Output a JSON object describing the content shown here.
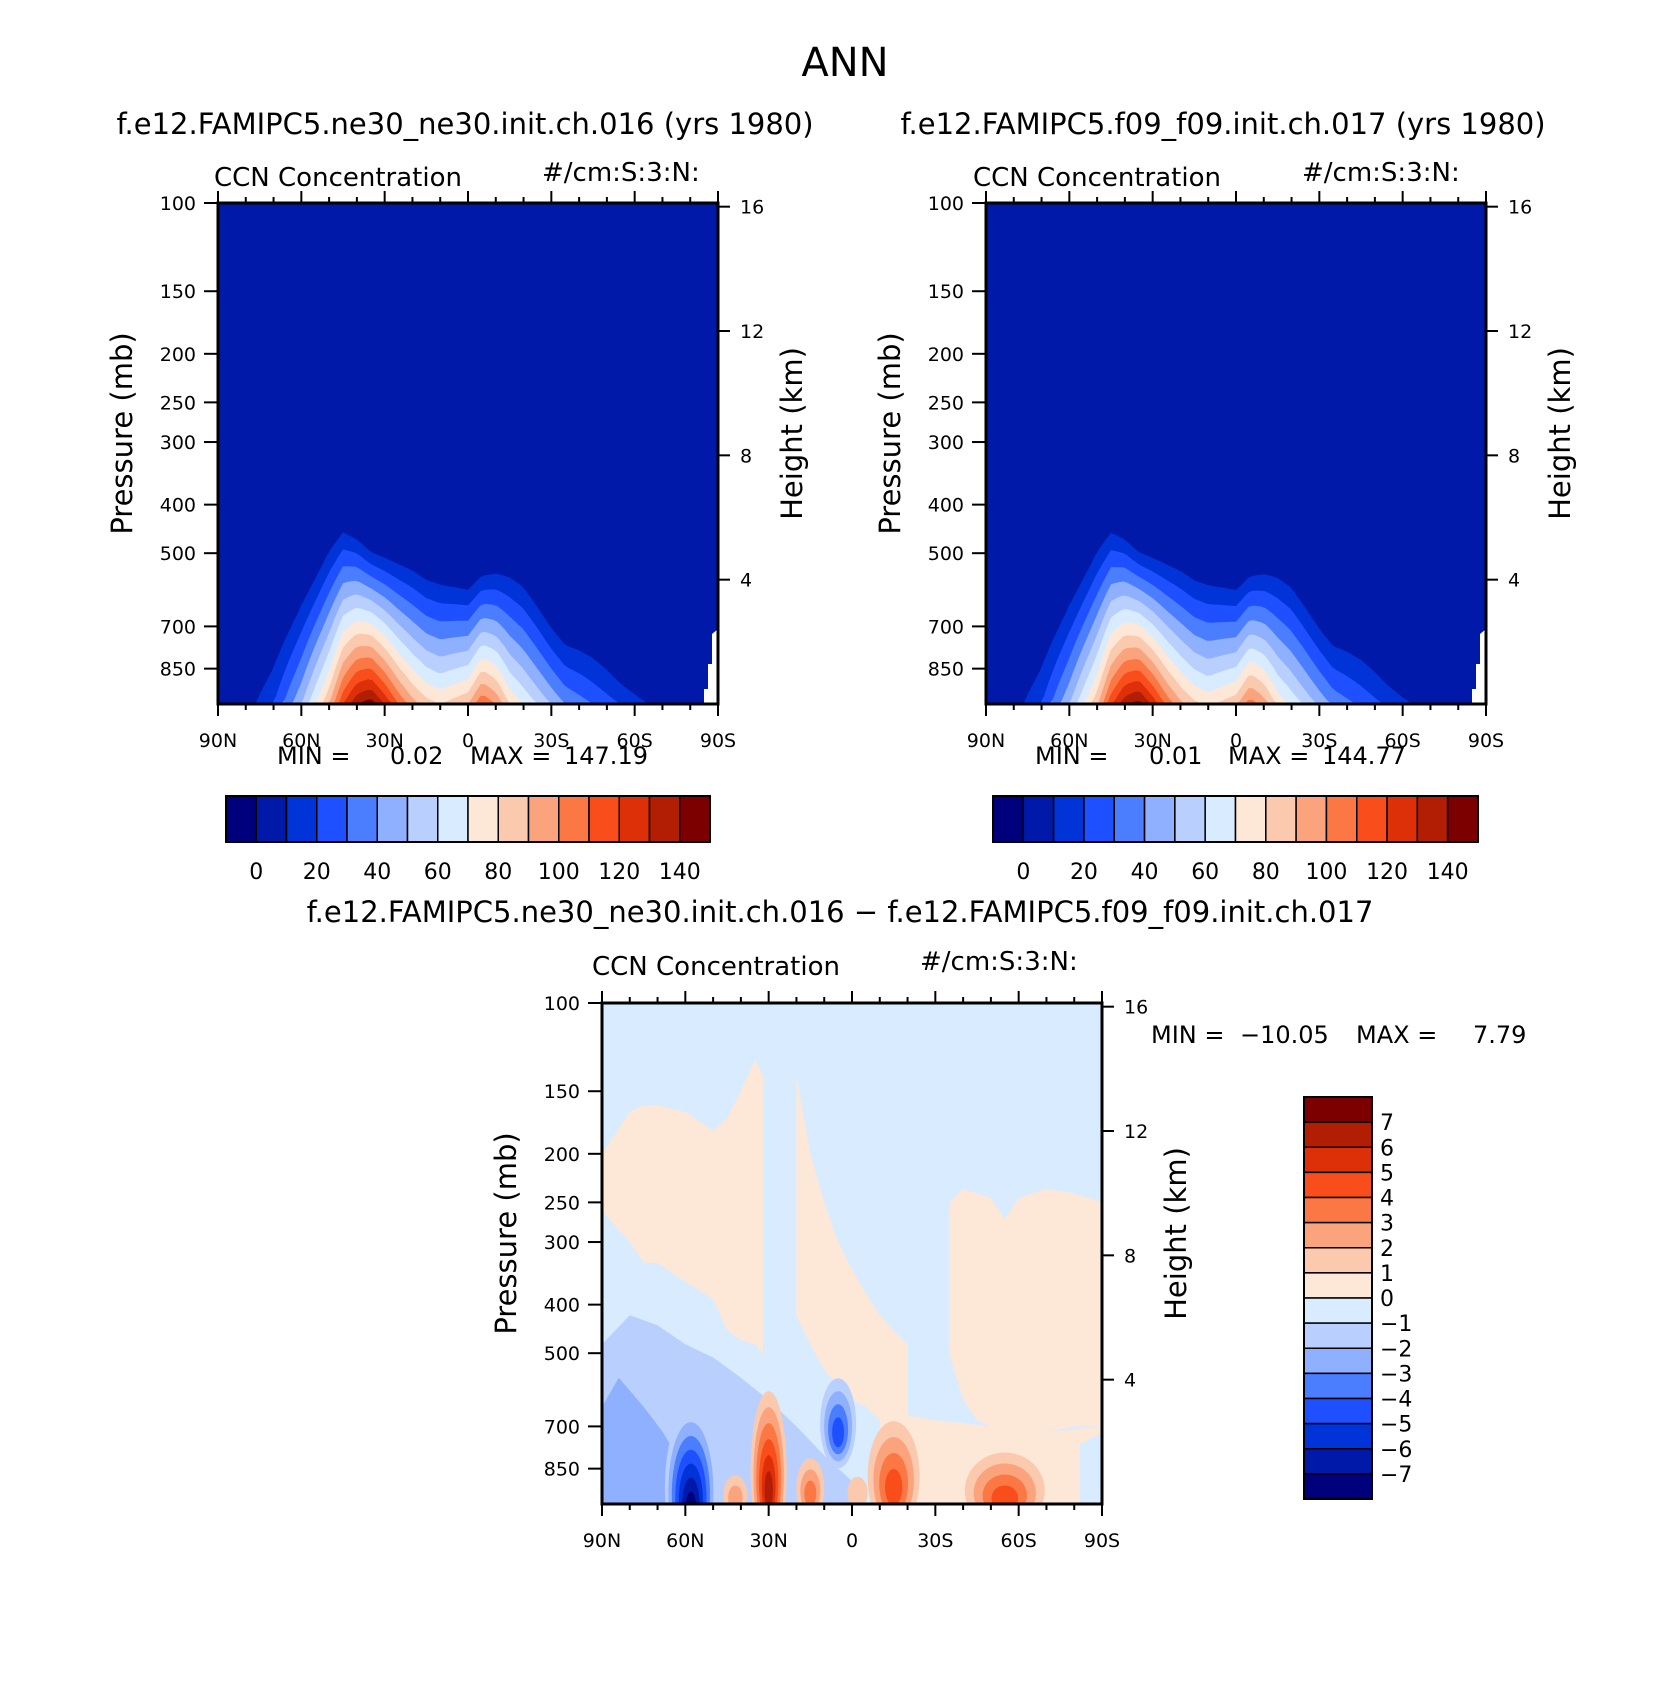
{
  "figure": {
    "title": "ANN"
  },
  "panels": [
    {
      "id": "model1",
      "case_title": "f.e12.FAMIPC5.ne30_ne30.init.ch.016 (yrs 1980)",
      "variable": "CCN Concentration",
      "units": "#/cm:S:3:N:",
      "min_label": "MIN =",
      "min_value": "0.02",
      "max_label": "MAX =",
      "max_value": "147.19",
      "colorbar_ticks": [
        "0",
        "20",
        "40",
        "60",
        "80",
        "100",
        "120",
        "140"
      ]
    },
    {
      "id": "model2",
      "case_title": "f.e12.FAMIPC5.f09_f09.init.ch.017 (yrs 1980)",
      "variable": "CCN Concentration",
      "units": "#/cm:S:3:N:",
      "min_label": "MIN =",
      "min_value": "0.01",
      "max_label": "MAX =",
      "max_value": "144.77",
      "colorbar_ticks": [
        "0",
        "20",
        "40",
        "60",
        "80",
        "100",
        "120",
        "140"
      ]
    },
    {
      "id": "difference",
      "case_title": "f.e12.FAMIPC5.ne30_ne30.init.ch.016 − f.e12.FAMIPC5.f09_f09.init.ch.017",
      "variable": "CCN Concentration",
      "units": "#/cm:S:3:N:",
      "min_label": "MIN =",
      "min_value": "−10.05",
      "max_label": "MAX =",
      "max_value": "7.79",
      "colorbar_ticks": [
        "7",
        "6",
        "5",
        "4",
        "3",
        "2",
        "1",
        "0",
        "−1",
        "−2",
        "−3",
        "−4",
        "−5",
        "−6",
        "−7"
      ]
    }
  ],
  "axes": {
    "ylabel": "Pressure (mb)",
    "ylabel_right": "Height (km)",
    "pressure_ticks": [
      "100",
      "150",
      "200",
      "250",
      "300",
      "400",
      "500",
      "700",
      "850"
    ],
    "height_ticks": [
      "16",
      "12",
      "8",
      "4"
    ],
    "lat_ticks": [
      "90N",
      "60N",
      "30N",
      "0",
      "30S",
      "60S",
      "90S"
    ]
  },
  "colors": {
    "seq": [
      "#00007c",
      "#0019a8",
      "#0034d8",
      "#1e50ff",
      "#4a7dff",
      "#8eb0ff",
      "#b9d0ff",
      "#d8ebff",
      "#fde8d8",
      "#fbc9ae",
      "#faa37c",
      "#fb7844",
      "#fa4d1c",
      "#dd3008",
      "#b11e04",
      "#7c0000"
    ],
    "diff": [
      "#00007c",
      "#0019a8",
      "#0034d8",
      "#1e50ff",
      "#4a7dff",
      "#8eb0ff",
      "#b9d0ff",
      "#d8ebff",
      "#fde8d8",
      "#fbc9ae",
      "#faa37c",
      "#fb7844",
      "#fa4d1c",
      "#dd3008",
      "#b11e04",
      "#7c0000"
    ]
  },
  "chart_data": [
    {
      "type": "heatmap",
      "title": "CCN Concentration",
      "xlabel": "",
      "ylabel": "Pressure (mb)",
      "x_ticks": [
        "90N",
        "60N",
        "30N",
        "0",
        "30S",
        "60S",
        "90S"
      ],
      "y_log_pressure": true,
      "ylim": [
        1000,
        100
      ],
      "contour_levels": [
        0,
        10,
        20,
        30,
        40,
        50,
        60,
        70,
        80,
        90,
        100,
        110,
        120,
        130,
        140
      ],
      "profile_lat": [
        90,
        80,
        70,
        60,
        50,
        45,
        40,
        35,
        30,
        25,
        20,
        15,
        10,
        5,
        0,
        -5,
        -10,
        -15,
        -20,
        -25,
        -30,
        -35,
        -40,
        -45,
        -50,
        -55,
        -60,
        -65,
        -70,
        -80,
        -90
      ],
      "top_pressure_mb": [
        900,
        850,
        700,
        560,
        450,
        420,
        440,
        470,
        480,
        490,
        500,
        520,
        530,
        540,
        550,
        520,
        510,
        510,
        530,
        580,
        640,
        690,
        700,
        720,
        760,
        820,
        860,
        900,
        920,
        940,
        950
      ],
      "peak_value": [
        0,
        5,
        20,
        50,
        90,
        120,
        140,
        147,
        130,
        110,
        95,
        85,
        80,
        85,
        90,
        110,
        100,
        80,
        70,
        60,
        50,
        40,
        35,
        30,
        25,
        20,
        15,
        10,
        5,
        2,
        0
      ],
      "min": 0.02,
      "max": 147.19
    },
    {
      "type": "heatmap",
      "title": "CCN Concentration",
      "xlabel": "",
      "ylabel": "Pressure (mb)",
      "x_ticks": [
        "90N",
        "60N",
        "30N",
        "0",
        "30S",
        "60S",
        "90S"
      ],
      "y_log_pressure": true,
      "ylim": [
        1000,
        100
      ],
      "contour_levels": [
        0,
        10,
        20,
        30,
        40,
        50,
        60,
        70,
        80,
        90,
        100,
        110,
        120,
        130,
        140
      ],
      "profile_lat": [
        90,
        80,
        70,
        60,
        50,
        45,
        40,
        35,
        30,
        25,
        20,
        15,
        10,
        5,
        0,
        -5,
        -10,
        -15,
        -20,
        -25,
        -30,
        -35,
        -40,
        -45,
        -50,
        -55,
        -60,
        -65,
        -70,
        -80,
        -90
      ],
      "top_pressure_mb": [
        900,
        850,
        700,
        560,
        450,
        420,
        440,
        470,
        480,
        490,
        500,
        520,
        530,
        540,
        550,
        520,
        510,
        510,
        530,
        580,
        640,
        690,
        700,
        720,
        760,
        820,
        860,
        900,
        920,
        940,
        950
      ],
      "peak_value": [
        0,
        5,
        20,
        50,
        88,
        118,
        138,
        145,
        128,
        108,
        93,
        83,
        78,
        83,
        88,
        106,
        96,
        78,
        68,
        58,
        48,
        38,
        33,
        28,
        23,
        18,
        13,
        9,
        5,
        2,
        0
      ],
      "min": 0.01,
      "max": 144.77
    },
    {
      "type": "heatmap",
      "title": "CCN Concentration",
      "xlabel": "",
      "ylabel": "Pressure (mb)",
      "x_ticks": [
        "90N",
        "60N",
        "30N",
        "0",
        "30S",
        "60S",
        "90S"
      ],
      "y_log_pressure": true,
      "ylim": [
        1000,
        100
      ],
      "contour_levels": [
        -7,
        -6,
        -5,
        -4,
        -3,
        -2,
        -1,
        0,
        1,
        2,
        3,
        4,
        5,
        6,
        7
      ],
      "positive_regions": [
        {
          "lat": [
            90,
            80,
            75,
            70,
            60,
            50,
            45,
            40,
            35,
            32
          ],
          "upper_mb": [
            200,
            165,
            160,
            160,
            165,
            180,
            170,
            150,
            130,
            140
          ],
          "lower_mb": [
            260,
            300,
            330,
            330,
            360,
            390,
            450,
            470,
            480,
            500
          ]
        },
        {
          "lat": [
            20,
            15,
            10,
            5,
            0,
            -5,
            -10,
            -15,
            -20
          ],
          "upper_mb": [
            140,
            200,
            250,
            300,
            340,
            380,
            420,
            450,
            480
          ],
          "lower_mb": [
            420,
            480,
            540,
            580,
            620,
            640,
            680,
            700,
            700
          ]
        },
        {
          "lat": [
            -35,
            -40,
            -45,
            -50,
            -55,
            -60,
            -70,
            -80,
            -90
          ],
          "upper_mb": [
            250,
            235,
            240,
            245,
            270,
            245,
            235,
            240,
            250
          ],
          "lower_mb": [
            500,
            620,
            680,
            700,
            740,
            760,
            720,
            700,
            700
          ]
        }
      ],
      "negative_blobs": [
        {
          "lat": 58,
          "pressure_mb": 900,
          "value": -10
        },
        {
          "lat": 5,
          "pressure_mb": 700,
          "value": -4
        },
        {
          "lat": 80,
          "pressure_mb": 760,
          "value": -3
        }
      ],
      "positive_blobs": [
        {
          "lat": 30,
          "pressure_mb": 830,
          "value": 5
        },
        {
          "lat": -15,
          "pressure_mb": 860,
          "value": 4
        },
        {
          "lat": -55,
          "pressure_mb": 900,
          "value": 4
        }
      ],
      "min": -10.05,
      "max": 7.79
    }
  ]
}
